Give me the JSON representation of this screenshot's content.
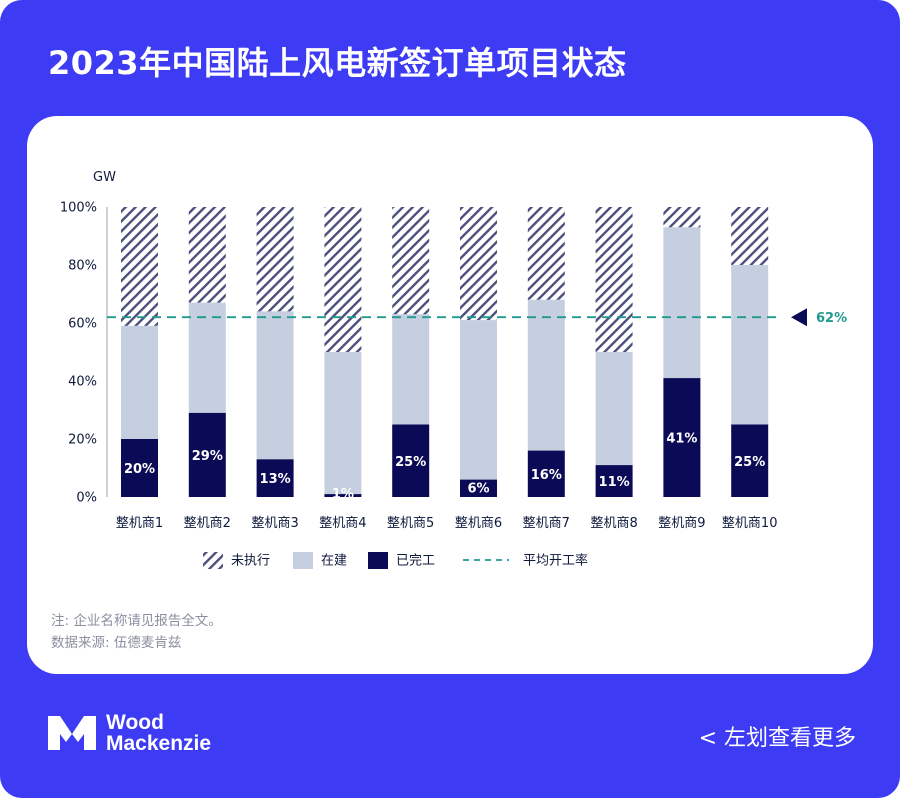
{
  "page": {
    "title": "2023年中国陆上风电新签订单项目状态",
    "notes": [
      "注: 企业名称请见报告全文。",
      "数据来源: 伍德麦肯兹"
    ],
    "brand": {
      "line1": "Wood",
      "line2": "Mackenzie"
    },
    "swipe_hint": "< 左划查看更多"
  },
  "colors": {
    "background": "#3d3bf3",
    "card": "#ffffff",
    "completed": "#0b0a56",
    "under_construction": "#c5cfe0",
    "not_started_stripe": "#4b4f7c",
    "average_line": "#1f9a8e",
    "text": "#0e1a3c"
  },
  "chart_data": {
    "type": "bar",
    "stacked": true,
    "ylabel": "GW",
    "ylim": [
      0,
      100
    ],
    "yticks": [
      "0%",
      "20%",
      "40%",
      "60%",
      "80%",
      "100%"
    ],
    "categories": [
      "整机商1",
      "整机商2",
      "整机商3",
      "整机商4",
      "整机商5",
      "整机商6",
      "整机商7",
      "整机商8",
      "整机商9",
      "整机商10"
    ],
    "series": [
      {
        "name": "已完工",
        "key": "completed",
        "values": [
          20,
          29,
          13,
          1,
          25,
          6,
          16,
          11,
          41,
          25
        ],
        "labels": [
          "20%",
          "29%",
          "13%",
          "1%",
          "25%",
          "6%",
          "16%",
          "11%",
          "41%",
          "25%"
        ]
      },
      {
        "name": "在建",
        "key": "under_construction",
        "values": [
          39,
          38,
          51,
          49,
          38,
          55,
          52,
          39,
          52,
          55
        ]
      },
      {
        "name": "未执行",
        "key": "not_started",
        "values": [
          41,
          33,
          36,
          50,
          37,
          39,
          32,
          50,
          7,
          20
        ]
      }
    ],
    "reference_line": {
      "name": "平均开工率",
      "value": 62,
      "label": "62%"
    },
    "legend": {
      "placement": "bottom",
      "order": [
        "未执行",
        "在建",
        "已完工",
        "平均开工率"
      ]
    },
    "grid": false
  }
}
